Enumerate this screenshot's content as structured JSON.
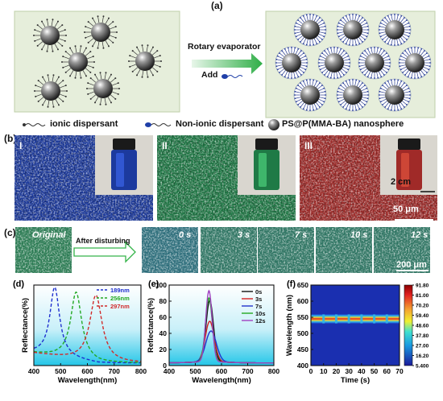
{
  "panel_a": {
    "letter": "(a)",
    "arrow_label_top": "Rotary evaporator",
    "arrow_label_bottom": "Add",
    "legend": [
      {
        "name": "ionic-dispersant-legend",
        "text": "ionic dispersant"
      },
      {
        "name": "nonionic-dispersant-legend",
        "text": "Non-ionic dispersant"
      },
      {
        "name": "nanosphere-legend",
        "text": "PS@P(MMA-BA) nanosphere"
      }
    ]
  },
  "panel_b": {
    "letter": "(b)",
    "tiles": [
      {
        "roman": "I",
        "base": "#1c3a9e",
        "accent": "#3a64e8"
      },
      {
        "roman": "II",
        "base": "#1f7a46",
        "accent": "#4bd07a"
      },
      {
        "roman": "III",
        "base": "#a02a28",
        "accent": "#e0523c"
      }
    ],
    "vial_scale": "2 cm",
    "micro_scale": "50 μm"
  },
  "panel_c": {
    "letter": "(c)",
    "original_label": "Original",
    "arrow_label": "After disturbing",
    "frames": [
      "0 s",
      "3 s",
      "7 s",
      "10 s",
      "12 s"
    ],
    "scale": "200 μm"
  },
  "colors": {
    "panel_a_bg": "#e6eedb",
    "panel_a_border": "#bfcfa8",
    "arrow_green": "#35b44a",
    "spectra_gradient_top": "#ffffff",
    "spectra_gradient_bottom": "#24c6e8"
  },
  "chart_data": [
    {
      "panel": "(d)",
      "type": "line",
      "xlabel": "Wavelength(nm)",
      "ylabel": "Reflectance(%)",
      "xlim": [
        400,
        800
      ],
      "x_ticks": [
        400,
        500,
        600,
        700,
        800
      ],
      "ylim": [
        0,
        100
      ],
      "legend_position": "top-right",
      "series": [
        {
          "name": "189nm",
          "color": "#1f2fcf",
          "dash": true,
          "peak": 478,
          "width": 22,
          "height": 86,
          "baseline": 17
        },
        {
          "name": "256nm",
          "color": "#22a822",
          "dash": true,
          "peak": 558,
          "width": 25,
          "height": 84,
          "baseline": 17
        },
        {
          "name": "297nm",
          "color": "#d12a2a",
          "dash": true,
          "peak": 632,
          "width": 28,
          "height": 84,
          "baseline": 17
        }
      ]
    },
    {
      "panel": "(e)",
      "type": "line",
      "xlabel": "Wavelength(nm)",
      "ylabel": "Reflectance(%)",
      "xlim": [
        400,
        800
      ],
      "x_ticks": [
        400,
        500,
        600,
        700,
        800
      ],
      "ylim": [
        0,
        100
      ],
      "y_ticks": [
        0,
        20,
        40,
        60,
        80,
        100
      ],
      "legend_position": "top-right",
      "series": [
        {
          "name": "0s",
          "color": "#111111",
          "peak": 555,
          "width": 14,
          "height": 76
        },
        {
          "name": "3s",
          "color": "#d42222",
          "peak": 555,
          "width": 17,
          "height": 50
        },
        {
          "name": "7s",
          "color": "#2233cc",
          "peak": 560,
          "width": 20,
          "height": 38
        },
        {
          "name": "10s",
          "color": "#22aa22",
          "peak": 552,
          "width": 13,
          "height": 79
        },
        {
          "name": "12s",
          "color": "#a040c0",
          "peak": 552,
          "width": 12,
          "height": 88
        }
      ]
    },
    {
      "panel": "(f)",
      "type": "heatmap",
      "xlabel": "Time (s)",
      "ylabel": "Wavelength (nm)",
      "xlim": [
        0,
        70
      ],
      "x_ticks": [
        0,
        10,
        20,
        30,
        40,
        50,
        60,
        70
      ],
      "ylim": [
        400,
        650
      ],
      "y_ticks": [
        400,
        450,
        500,
        550,
        600,
        650
      ],
      "band_center_nm": 545,
      "dip_times_s": [
        10,
        20,
        30,
        40,
        50,
        60
      ],
      "colorbar_ticks": [
        "91.80",
        "81.00",
        "70.20",
        "59.40",
        "48.60",
        "37.80",
        "27.00",
        "16.20",
        "5.400"
      ]
    }
  ]
}
